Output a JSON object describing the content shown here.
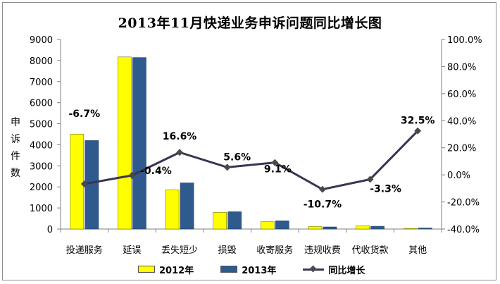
{
  "chart_data": {
    "type": "bar+line",
    "title": "2013年11月快递业务申诉问题同比增长图",
    "ylabel": "申诉件数",
    "categories": [
      "投递服务",
      "延误",
      "丢失短少",
      "损毁",
      "收寄服务",
      "违规收费",
      "代收货款",
      "其他"
    ],
    "series": [
      {
        "name": "2012年",
        "kind": "bar",
        "axis": "left",
        "color": "#ffff00",
        "values": [
          4500,
          8170,
          1860,
          790,
          350,
          120,
          150,
          30
        ]
      },
      {
        "name": "2013年",
        "kind": "bar",
        "axis": "left",
        "color": "#2e5a8e",
        "values": [
          4200,
          8140,
          2190,
          820,
          390,
          100,
          130,
          50
        ]
      },
      {
        "name": "同比增长",
        "kind": "line",
        "axis": "right",
        "color": "#3c3452",
        "values": [
          -6.7,
          -0.4,
          16.6,
          5.6,
          9.1,
          -10.7,
          -3.3,
          32.5
        ],
        "labels": [
          "-6.7%",
          "-0.4%",
          "16.6%",
          "5.6%",
          "9.1%",
          "-10.7%",
          "-3.3%",
          "32.5%"
        ]
      }
    ],
    "y_left": {
      "min": 0,
      "max": 9000,
      "step": 1000,
      "ticks": [
        "0",
        "1000",
        "2000",
        "3000",
        "4000",
        "5000",
        "6000",
        "7000",
        "8000",
        "9000"
      ]
    },
    "y_right": {
      "min": -40,
      "max": 100,
      "step": 20,
      "ticks": [
        "-40.0%",
        "-20.0%",
        "0.0%",
        "20.0%",
        "40.0%",
        "60.0%",
        "80.0%",
        "100.0%"
      ]
    },
    "grid": false,
    "legend_position": "bottom"
  }
}
